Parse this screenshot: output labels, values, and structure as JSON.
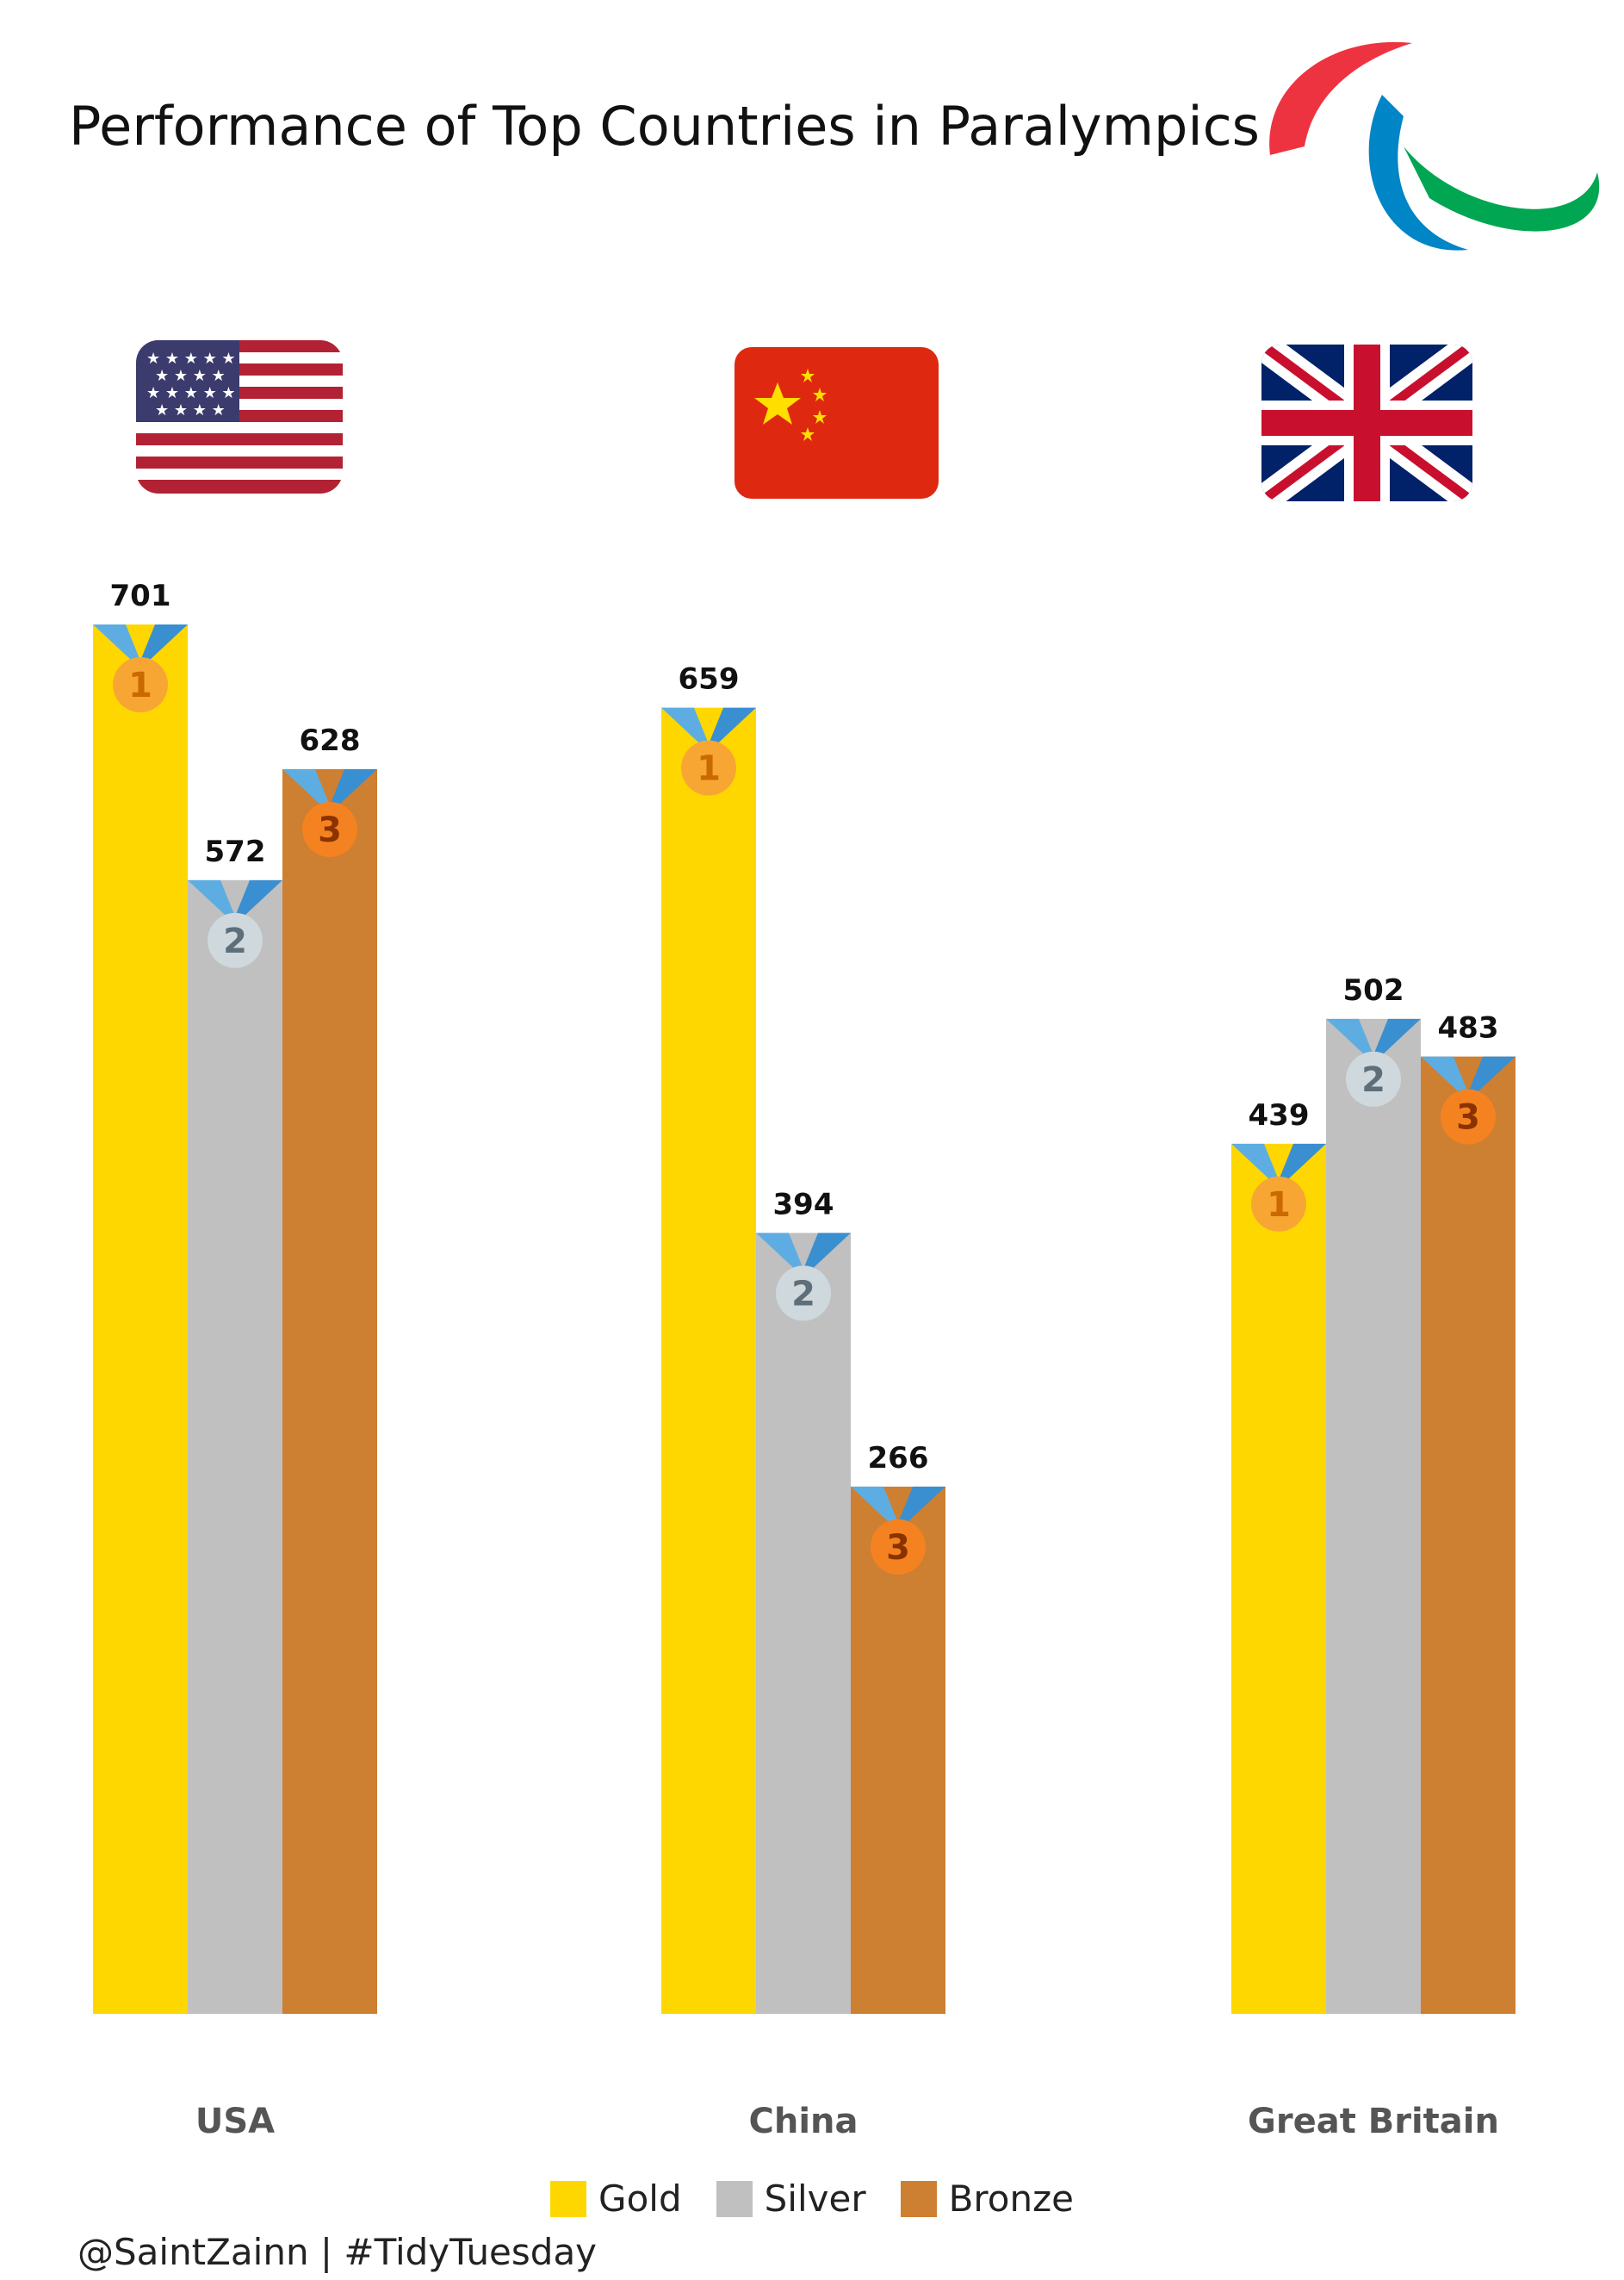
{
  "chart_data": {
    "type": "bar",
    "title": "Performance of Top Countries in Paralympics",
    "categories": [
      "USA",
      "China",
      "Great Britain"
    ],
    "series": [
      {
        "name": "Gold",
        "color": "#FFD700",
        "values": [
          701,
          659,
          439
        ]
      },
      {
        "name": "Silver",
        "color": "#C0C0C0",
        "values": [
          572,
          394,
          502
        ]
      },
      {
        "name": "Bronze",
        "color": "#CD7F32",
        "values": [
          628,
          266,
          483
        ]
      }
    ],
    "medal_ranks": [
      "1",
      "2",
      "3"
    ],
    "ylim": [
      0,
      701
    ],
    "grid": false,
    "legend_position": "bottom"
  },
  "flags": [
    "usa-flag-icon",
    "china-flag-icon",
    "uk-flag-icon"
  ],
  "logo": "paralympics-agitos-logo",
  "caption": "@SaintZainn | #TidyTuesday"
}
